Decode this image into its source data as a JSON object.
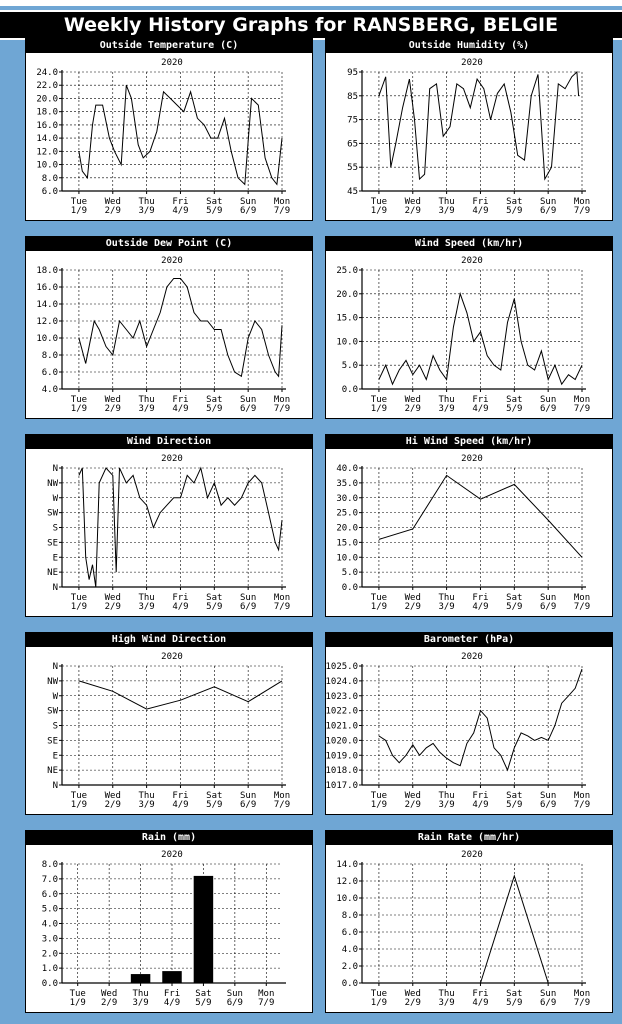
{
  "page_title": "Weekly History Graphs for RANSBERG, BELGIE",
  "x_days": [
    {
      "day": "Tue",
      "date": "1/9"
    },
    {
      "day": "Wed",
      "date": "2/9"
    },
    {
      "day": "Thu",
      "date": "3/9"
    },
    {
      "day": "Fri",
      "date": "4/9"
    },
    {
      "day": "Sat",
      "date": "5/9"
    },
    {
      "day": "Sun",
      "date": "6/9"
    },
    {
      "day": "Mon",
      "date": "7/9"
    }
  ],
  "chart_data": [
    {
      "id": "temp",
      "type": "line",
      "title": "Outside Temperature (C)",
      "subtitle": "2020",
      "ylim": [
        6,
        24
      ],
      "ytick_step": 2,
      "ytick_decimals": 1,
      "grid": true,
      "series": [
        {
          "x": [
            0,
            0.1,
            0.25,
            0.4,
            0.5,
            0.7,
            0.9,
            1.05,
            1.25,
            1.4,
            1.55,
            1.75,
            1.9,
            2.1,
            2.3,
            2.5,
            2.7,
            2.9,
            3.1,
            3.3,
            3.5,
            3.7,
            3.9,
            4.1,
            4.3,
            4.5,
            4.7,
            4.9,
            5.1,
            5.3,
            5.5,
            5.7,
            5.85,
            6.0
          ],
          "y": [
            12,
            9,
            8,
            16,
            19,
            19,
            14,
            12,
            10,
            22,
            20,
            13,
            11,
            12,
            15,
            21,
            20,
            19,
            18,
            21,
            17,
            16,
            14,
            14,
            17,
            12,
            8,
            7,
            20,
            19,
            11,
            8,
            7,
            14
          ]
        }
      ]
    },
    {
      "id": "humidity",
      "type": "line",
      "title": "Outside Humidity (%)",
      "subtitle": "2020",
      "ylim": [
        45,
        95
      ],
      "ytick_step": 10,
      "ytick_decimals": 0,
      "ytick_values": [
        45,
        55,
        65,
        75,
        85,
        95
      ],
      "grid": true,
      "series": [
        {
          "x": [
            0,
            0.2,
            0.35,
            0.5,
            0.7,
            0.9,
            1.05,
            1.2,
            1.35,
            1.5,
            1.7,
            1.9,
            2.1,
            2.3,
            2.5,
            2.7,
            2.9,
            3.1,
            3.3,
            3.5,
            3.7,
            3.9,
            4.1,
            4.3,
            4.5,
            4.7,
            4.9,
            5.1,
            5.3,
            5.5,
            5.7,
            5.85,
            5.9
          ],
          "y": [
            85,
            93,
            55,
            65,
            80,
            92,
            75,
            50,
            52,
            88,
            90,
            68,
            72,
            90,
            88,
            80,
            92,
            88,
            75,
            86,
            90,
            78,
            60,
            58,
            85,
            94,
            50,
            55,
            90,
            88,
            93,
            95,
            85
          ]
        }
      ]
    },
    {
      "id": "dewpoint",
      "type": "line",
      "title": "Outside Dew Point (C)",
      "subtitle": "2020",
      "ylim": [
        4,
        18
      ],
      "ytick_step": 2,
      "ytick_decimals": 1,
      "grid": true,
      "series": [
        {
          "x": [
            0,
            0.2,
            0.45,
            0.6,
            0.8,
            1.0,
            1.2,
            1.4,
            1.6,
            1.8,
            2.0,
            2.2,
            2.4,
            2.6,
            2.8,
            3.0,
            3.2,
            3.4,
            3.6,
            3.8,
            4.0,
            4.2,
            4.4,
            4.6,
            4.8,
            5.0,
            5.2,
            5.4,
            5.6,
            5.8,
            5.9,
            6.0
          ],
          "y": [
            10,
            7,
            12,
            11,
            9,
            8,
            12,
            11,
            10,
            12,
            9,
            11,
            13,
            16,
            17,
            17,
            16,
            13,
            12,
            12,
            11,
            11,
            8,
            6,
            5.5,
            10,
            12,
            11,
            8,
            6,
            5.5,
            11.5
          ]
        }
      ]
    },
    {
      "id": "windspeed",
      "type": "line",
      "title": "Wind Speed (km/hr)",
      "subtitle": "2020",
      "ylim": [
        0,
        25
      ],
      "ytick_step": 5,
      "ytick_decimals": 1,
      "grid": true,
      "series": [
        {
          "x": [
            0,
            0.2,
            0.4,
            0.6,
            0.8,
            1.0,
            1.2,
            1.4,
            1.6,
            1.8,
            2.0,
            2.2,
            2.4,
            2.6,
            2.8,
            3.0,
            3.2,
            3.4,
            3.6,
            3.8,
            4.0,
            4.2,
            4.4,
            4.6,
            4.8,
            5.0,
            5.2,
            5.4,
            5.6,
            5.8,
            6.0
          ],
          "y": [
            2,
            5,
            1,
            4,
            6,
            3,
            5,
            2,
            7,
            4,
            2,
            13,
            20,
            16,
            10,
            12,
            7,
            5,
            4,
            14,
            19,
            10,
            5,
            4,
            8,
            2,
            5,
            1,
            3,
            2,
            5
          ]
        }
      ]
    },
    {
      "id": "winddir",
      "type": "line",
      "title": "Wind Direction",
      "subtitle": "2020",
      "ylim": [
        0,
        8
      ],
      "ytick_labels": [
        "N",
        "NE",
        "E",
        "SE",
        "S",
        "SW",
        "W",
        "NW",
        "N"
      ],
      "grid": true,
      "series": [
        {
          "x": [
            0,
            0.1,
            0.2,
            0.3,
            0.4,
            0.5,
            0.6,
            0.8,
            1.0,
            1.1,
            1.2,
            1.4,
            1.6,
            1.8,
            2.0,
            2.2,
            2.4,
            2.6,
            2.8,
            3.0,
            3.2,
            3.4,
            3.6,
            3.8,
            4.0,
            4.2,
            4.4,
            4.6,
            4.8,
            5.0,
            5.2,
            5.4,
            5.6,
            5.8,
            5.9,
            6.0
          ],
          "y": [
            7.5,
            8,
            2,
            0.5,
            1.5,
            0,
            7,
            8,
            7.5,
            1,
            8,
            7,
            7.5,
            6,
            5.5,
            4,
            5,
            5.5,
            6,
            6,
            7.5,
            7,
            8,
            6,
            7,
            5.5,
            6,
            5.5,
            6,
            7,
            7.5,
            7,
            5,
            3,
            2.5,
            4.5
          ]
        }
      ]
    },
    {
      "id": "hiwind",
      "type": "line",
      "title": "Hi Wind Speed (km/hr)",
      "subtitle": "2020",
      "ylim": [
        0,
        40
      ],
      "ytick_step": 5,
      "ytick_decimals": 1,
      "grid": true,
      "series": [
        {
          "x": [
            0,
            1,
            2,
            3,
            4,
            5,
            6
          ],
          "y": [
            16,
            19.5,
            37.5,
            29.5,
            34.5,
            22.5,
            10
          ]
        }
      ]
    },
    {
      "id": "hiwinddir",
      "type": "line",
      "title": "High Wind Direction",
      "subtitle": "2020",
      "ylim": [
        0,
        8
      ],
      "ytick_labels": [
        "N",
        "NE",
        "E",
        "SE",
        "S",
        "SW",
        "W",
        "NW",
        "N"
      ],
      "grid": true,
      "series": [
        {
          "x": [
            0,
            1,
            2,
            3,
            4,
            5,
            6
          ],
          "y": [
            7,
            6.3,
            5.1,
            5.7,
            6.6,
            5.6,
            7
          ]
        }
      ]
    },
    {
      "id": "barometer",
      "type": "line",
      "title": "Barometer (hPa)",
      "subtitle": "2020",
      "ylim": [
        1017,
        1025
      ],
      "ytick_step": 1,
      "ytick_decimals": 1,
      "grid": true,
      "series": [
        {
          "x": [
            0,
            0.2,
            0.4,
            0.6,
            0.8,
            1.0,
            1.2,
            1.4,
            1.6,
            1.8,
            2.0,
            2.2,
            2.4,
            2.6,
            2.8,
            3.0,
            3.2,
            3.4,
            3.6,
            3.8,
            4.0,
            4.2,
            4.4,
            4.6,
            4.8,
            5.0,
            5.2,
            5.4,
            5.6,
            5.8,
            6.0
          ],
          "y": [
            1020.3,
            1020,
            1019,
            1018.5,
            1019,
            1019.7,
            1019,
            1019.5,
            1019.8,
            1019.2,
            1018.8,
            1018.5,
            1018.3,
            1019.8,
            1020.5,
            1022,
            1021.5,
            1019.5,
            1019,
            1018,
            1019.5,
            1020.5,
            1020.3,
            1020,
            1020.2,
            1020,
            1021,
            1022.5,
            1023,
            1023.5,
            1024.8
          ]
        }
      ]
    },
    {
      "id": "rain",
      "type": "bar",
      "title": "Rain (mm)",
      "subtitle": "2020",
      "ylim": [
        0,
        8
      ],
      "ytick_step": 1,
      "ytick_decimals": 1,
      "grid": true,
      "categories": [
        "Tue",
        "Wed",
        "Thu",
        "Fri",
        "Sat",
        "Sun",
        "Mon"
      ],
      "values": [
        0,
        0,
        0.6,
        0.8,
        7.2,
        0,
        0
      ]
    },
    {
      "id": "rainrate",
      "type": "line",
      "title": "Rain Rate (mm/hr)",
      "subtitle": "2020",
      "ylim": [
        0,
        14
      ],
      "ytick_step": 2,
      "ytick_decimals": 1,
      "grid": true,
      "series": [
        {
          "x": [
            0,
            3.0,
            4.0,
            5.0,
            6.0
          ],
          "y": [
            0,
            0,
            12.6,
            0,
            0
          ]
        }
      ]
    }
  ]
}
